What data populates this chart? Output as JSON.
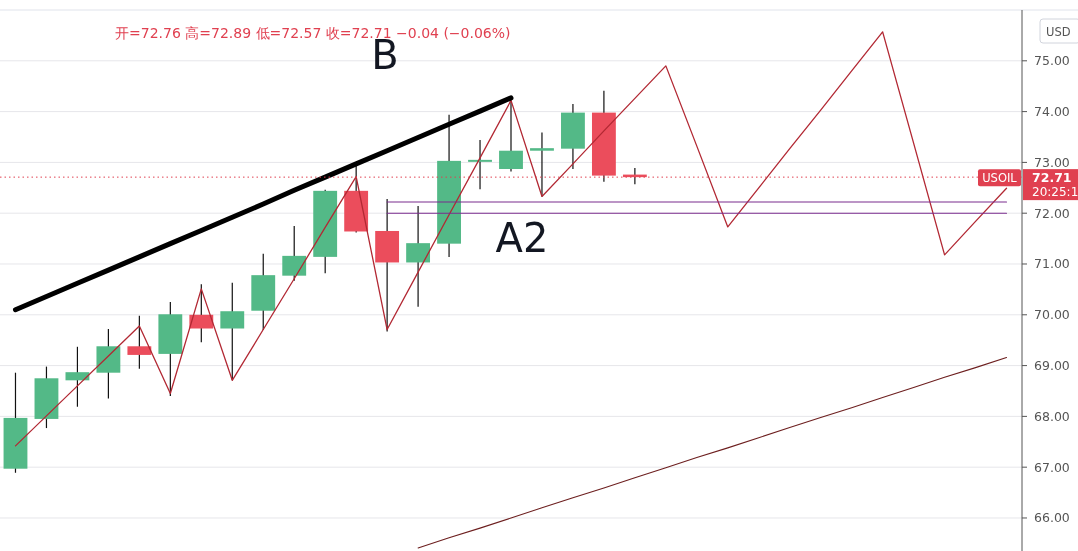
{
  "chart_data": {
    "type": "candlestick",
    "title": "开=72.76 高=72.89 低=72.57 收=72.71 −0.04 (−0.06%)",
    "categories": [
      null,
      null,
      null,
      null,
      null,
      null,
      null,
      null,
      null,
      null,
      null,
      null,
      null,
      null,
      null,
      null,
      null,
      null,
      null,
      null,
      null,
      null,
      null,
      null,
      null,
      null,
      null,
      null,
      null,
      null,
      null,
      null,
      null
    ],
    "ohlc": [
      [
        66.97,
        68.86,
        66.89,
        67.97
      ],
      [
        67.95,
        68.98,
        67.77,
        68.75
      ],
      [
        68.71,
        69.37,
        68.19,
        68.87
      ],
      [
        68.86,
        69.72,
        68.35,
        69.38
      ],
      [
        69.38,
        69.98,
        68.94,
        69.21
      ],
      [
        69.23,
        70.25,
        68.4,
        70.01
      ],
      [
        70.0,
        70.6,
        69.46,
        69.73
      ],
      [
        69.73,
        70.63,
        68.71,
        70.07
      ],
      [
        70.08,
        71.2,
        69.7,
        70.78
      ],
      [
        70.77,
        71.75,
        70.67,
        71.16
      ],
      [
        71.14,
        72.46,
        70.82,
        72.44
      ],
      [
        72.44,
        72.93,
        71.62,
        71.64
      ],
      [
        71.65,
        72.28,
        69.67,
        71.03
      ],
      [
        71.03,
        72.14,
        70.16,
        71.41
      ],
      [
        71.4,
        73.94,
        71.14,
        73.03
      ],
      [
        73.02,
        73.44,
        72.47,
        73.05
      ],
      [
        72.87,
        74.22,
        72.82,
        73.23
      ],
      [
        73.23,
        73.59,
        72.33,
        73.28
      ],
      [
        73.27,
        74.15,
        72.87,
        73.98
      ],
      [
        73.98,
        74.41,
        72.62,
        72.74
      ],
      [
        72.76,
        72.89,
        72.57,
        72.71
      ],
      null,
      null,
      null,
      null,
      null,
      null,
      null,
      null,
      null,
      null,
      null,
      null
    ],
    "colors": [
      "#53b987",
      "#53b987",
      "#53b987",
      "#53b987",
      "#eb4d5c",
      "#53b987",
      "#eb4d5c",
      "#53b987",
      "#53b987",
      "#53b987",
      "#53b987",
      "#eb4d5c",
      "#eb4d5c",
      "#53b987",
      "#53b987",
      "#53b987",
      "#53b987",
      "#53b987",
      "#53b987",
      "#eb4d5c",
      "#eb4d5c",
      null,
      null,
      null,
      null,
      null,
      null,
      null,
      null,
      null,
      null,
      null,
      null
    ],
    "series": [
      {
        "type": "line",
        "color": "#b22833",
        "values": [
          67.42,
          68.01,
          68.6,
          69.19,
          69.78,
          68.45,
          70.51,
          68.71,
          69.71,
          70.71,
          71.72,
          72.72,
          69.71,
          70.84,
          71.97,
          73.09,
          74.22,
          72.33,
          72.97,
          73.62,
          74.26,
          74.9,
          73.32,
          71.73,
          72.5,
          73.27,
          74.03,
          74.8,
          75.57,
          73.38,
          71.18,
          71.84,
          72.49
        ]
      },
      {
        "type": "line",
        "color": "#000000",
        "values": [
          70.1,
          70.36,
          70.62,
          70.88,
          71.14,
          71.4,
          71.66,
          71.92,
          72.18,
          72.45,
          72.71,
          72.97,
          73.23,
          73.49,
          73.75,
          74.01,
          74.27,
          null,
          null,
          null,
          null,
          null,
          null,
          null,
          null,
          null,
          null,
          null,
          null,
          null,
          null,
          null,
          null
        ]
      },
      {
        "type": "line",
        "color": "#6d1f1f",
        "values": [
          null,
          null,
          null,
          null,
          null,
          null,
          null,
          null,
          null,
          null,
          null,
          null,
          null,
          65.41,
          65.61,
          65.8,
          66.0,
          66.2,
          66.4,
          66.59,
          66.79,
          66.99,
          67.19,
          67.38,
          67.58,
          67.78,
          67.98,
          68.17,
          68.37,
          68.57,
          68.77,
          68.96,
          69.16
        ]
      },
      {
        "type": "line",
        "color": "#7b2d8e",
        "values": [
          null,
          null,
          null,
          null,
          null,
          null,
          null,
          null,
          null,
          null,
          null,
          null,
          72.22,
          72.22,
          72.22,
          72.22,
          72.22,
          72.22,
          72.22,
          72.22,
          72.22,
          72.22,
          72.22,
          72.22,
          72.22,
          72.22,
          72.22,
          72.22,
          72.22,
          72.22,
          72.22,
          72.22,
          72.22
        ]
      },
      {
        "type": "line",
        "color": "#7b2d8e",
        "values": [
          null,
          null,
          null,
          null,
          null,
          null,
          null,
          null,
          null,
          null,
          null,
          null,
          72.0,
          72.0,
          72.0,
          72.0,
          72.0,
          72.0,
          72.0,
          72.0,
          72.0,
          72.0,
          72.0,
          72.0,
          72.0,
          72.0,
          72.0,
          72.0,
          72.0,
          72.0,
          72.0,
          72.0,
          72.0
        ]
      }
    ],
    "ref_lines": [
      {
        "axis": "y",
        "value": 72.71,
        "label": "USOIL",
        "color": "#e04050",
        "line_style": "dotted"
      }
    ],
    "annotations": [
      "B",
      "A2",
      "72.71",
      "20:25:1",
      "USD"
    ],
    "ylim": [
      65.35,
      76.0
    ],
    "yticks": [
      {
        "value": 66,
        "label": "66.00"
      },
      {
        "value": 67,
        "label": "67.00"
      },
      {
        "value": 68,
        "label": "68.00"
      },
      {
        "value": 69,
        "label": "69.00"
      },
      {
        "value": 70,
        "label": "70.00"
      },
      {
        "value": 71,
        "label": "71.00"
      },
      {
        "value": 72,
        "label": "72.00"
      },
      {
        "value": 73,
        "label": "73.00"
      },
      {
        "value": 74,
        "label": "74.00"
      },
      {
        "value": 75,
        "label": "75.00"
      }
    ],
    "tick_labels": "y",
    "grid": "y",
    "marker": "none",
    "line_style": "solid"
  }
}
